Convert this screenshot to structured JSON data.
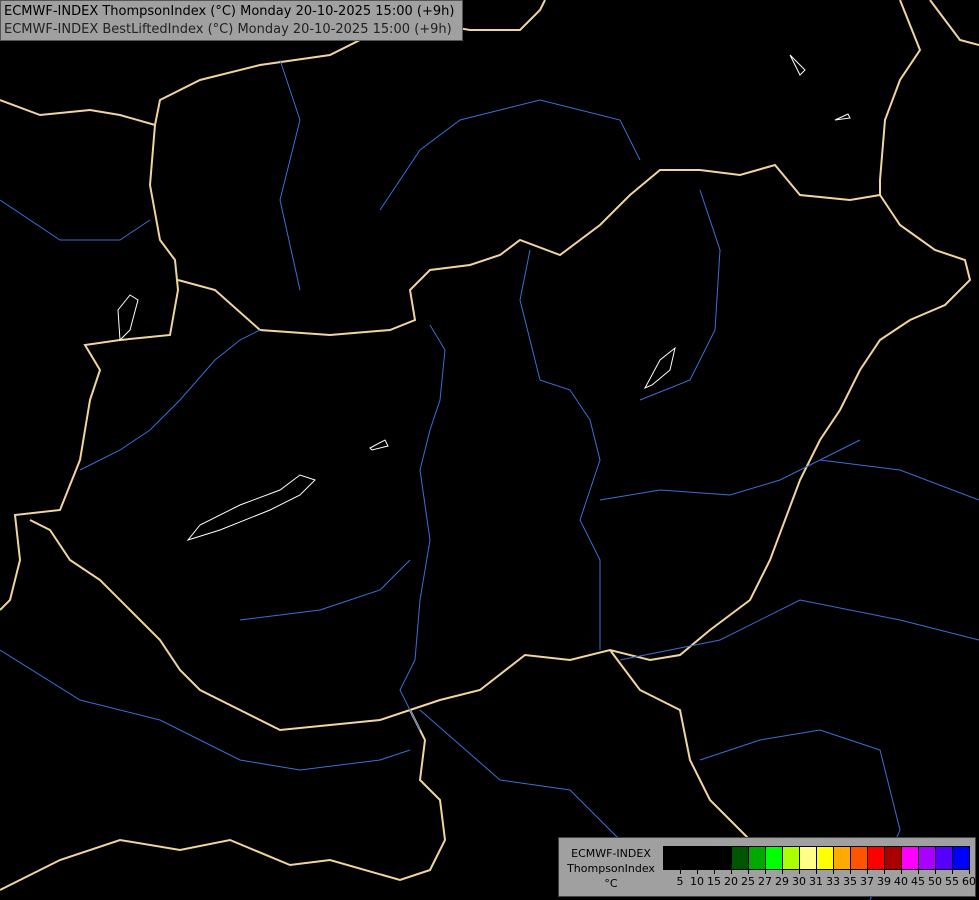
{
  "header": {
    "line1": "ECMWF-INDEX ThompsonIndex (°C) Monday 20-10-2025 15:00 (+9h)",
    "line2": "ECMWF-INDEX BestLiftedIndex (°C) Monday 20-10-2025 15:00 (+9h)"
  },
  "legend": {
    "source": "ECMWF-INDEX",
    "parameter": "ThompsonIndex",
    "unit": "°C",
    "colors": [
      "#000000",
      "#000000",
      "#000000",
      "#000000",
      "#005500",
      "#00aa00",
      "#00ff00",
      "#aaff00",
      "#ffff88",
      "#ffff00",
      "#ffaa00",
      "#ff5500",
      "#ff0000",
      "#aa0000",
      "#ff00ff",
      "#aa00ff",
      "#5500ff",
      "#0000ff"
    ],
    "ticks": [
      "5",
      "10",
      "15",
      "20",
      "25",
      "27",
      "29",
      "30",
      "31",
      "33",
      "35",
      "37",
      "39",
      "40",
      "45",
      "50",
      "55",
      "60"
    ]
  },
  "map_colors": {
    "background": "#000000",
    "borders": "#f2d59c",
    "rivers": "#3b6fd8",
    "lakes": "#ffffff"
  }
}
